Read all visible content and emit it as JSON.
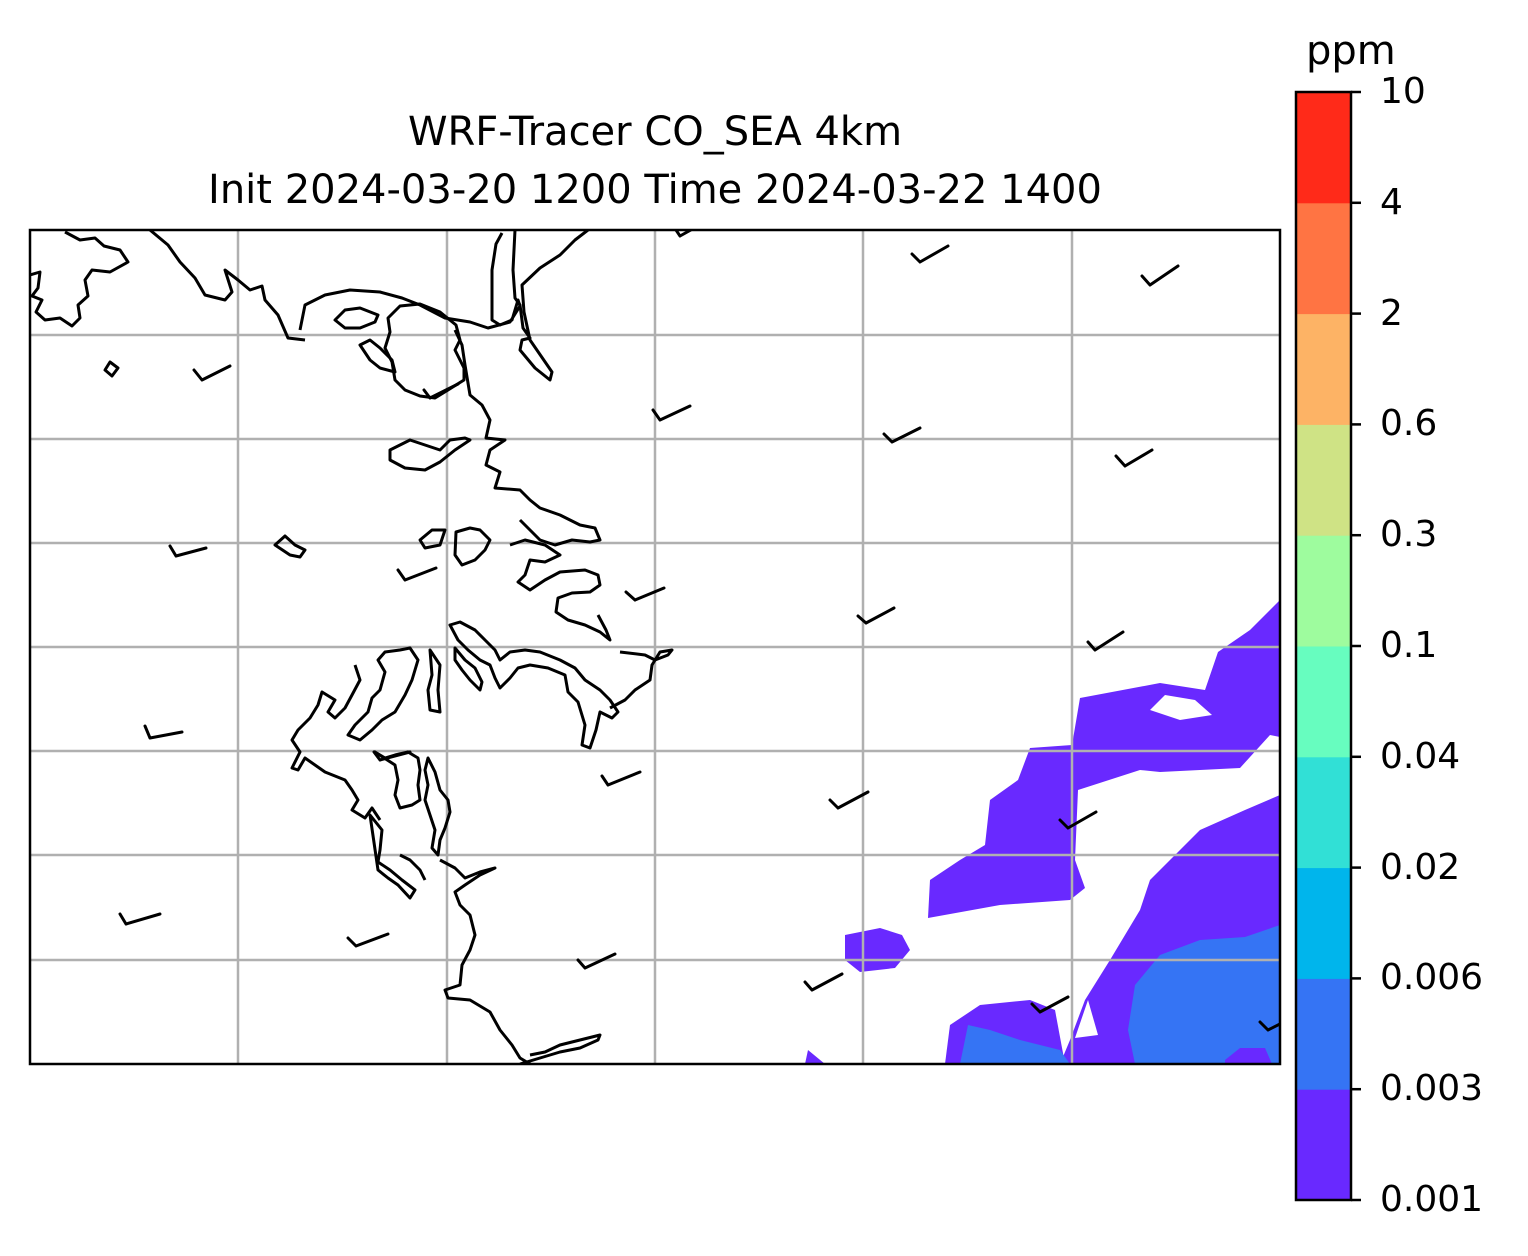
{
  "title": {
    "line1": "WRF-Tracer CO_SEA 4km",
    "line2": "Init 2024-03-20 1200 Time 2024-03-22 1400"
  },
  "colorbar": {
    "unit": "ppm",
    "ticks": [
      "0.001",
      "0.003",
      "0.006",
      "0.02",
      "0.04",
      "0.1",
      "0.3",
      "0.6",
      "2",
      "4",
      "10"
    ],
    "colors": [
      "#6929ff",
      "#3574f4",
      "#00b5ec",
      "#31e0d6",
      "#67fdbf",
      "#9efc9e",
      "#cfe385",
      "#fdb365",
      "#ff7443",
      "#ff2a19"
    ]
  },
  "map": {
    "gridlines": true,
    "gridline_color": "#b0b0b0",
    "coastline_color": "#000000",
    "wind_barbs": "5-knot half barbs from the west-southwest"
  }
}
